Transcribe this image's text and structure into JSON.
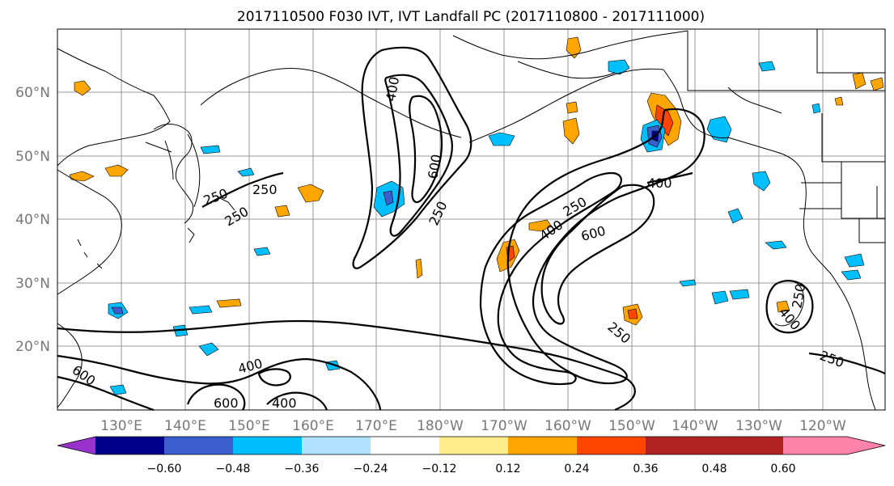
{
  "title": "2017110500 F030 IVT, IVT Landfall PC (2017110800 - 2017111000)",
  "lat_ticks": [
    "60°N",
    "50°N",
    "40°N",
    "30°N",
    "20°N"
  ],
  "lon_ticks": [
    "130°E",
    "140°E",
    "150°E",
    "160°E",
    "170°E",
    "180°W",
    "170°W",
    "160°W",
    "150°W",
    "140°W",
    "130°W",
    "120°W"
  ],
  "colorbar": {
    "colors": [
      "#9932cc",
      "#00008b",
      "#3a5fcd",
      "#00bfff",
      "#b0e2ff",
      "#ffffff",
      "#ffec8b",
      "#ffa500",
      "#ff4500",
      "#b22222",
      "#ff82ab"
    ],
    "tick_labels": [
      "−0.60",
      "−0.48",
      "−0.36",
      "−0.24",
      "−0.12",
      "0.12",
      "0.24",
      "0.36",
      "0.48",
      "0.60"
    ]
  },
  "contour_labels": [
    {
      "text": "400"
    },
    {
      "text": "600"
    },
    {
      "text": "250"
    },
    {
      "text": "250"
    },
    {
      "text": "250"
    },
    {
      "text": "250"
    },
    {
      "text": "400"
    },
    {
      "text": "250"
    },
    {
      "text": "400"
    },
    {
      "text": "600"
    },
    {
      "text": "250"
    },
    {
      "text": "400"
    },
    {
      "text": "250"
    },
    {
      "text": "600"
    },
    {
      "text": "400"
    },
    {
      "text": "600"
    },
    {
      "text": "400"
    },
    {
      "text": "250"
    }
  ]
}
